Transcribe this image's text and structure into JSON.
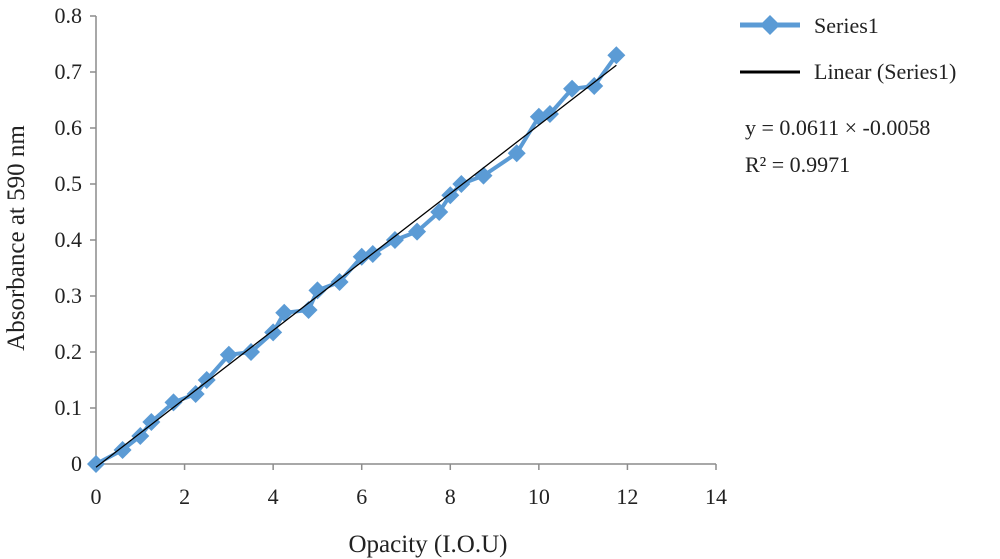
{
  "chart_data": {
    "type": "scatter",
    "title": "",
    "xlabel": "Opacity (I.O.U)",
    "ylabel": "Absorbance at 590 nm",
    "xlim": [
      0,
      14
    ],
    "ylim": [
      0,
      0.8
    ],
    "xticks": [
      "0",
      "2",
      "4",
      "6",
      "8",
      "10",
      "12",
      "14"
    ],
    "yticks": [
      "0",
      "0.1",
      "0.2",
      "0.3",
      "0.4",
      "0.5",
      "0.6",
      "0.7",
      "0.8"
    ],
    "grid": false,
    "legend_position": "right",
    "series": [
      {
        "name": "Series1",
        "color": "#5b9bd5",
        "marker": "diamond",
        "line": true,
        "x": [
          0,
          0.6,
          1.0,
          1.25,
          1.75,
          2.25,
          2.5,
          3.0,
          3.5,
          4.0,
          4.25,
          4.8,
          5.0,
          5.5,
          6.0,
          6.25,
          6.75,
          7.25,
          7.75,
          8.0,
          8.25,
          8.75,
          9.5,
          10.0,
          10.25,
          10.75,
          11.25,
          11.75
        ],
        "y": [
          0,
          0.025,
          0.05,
          0.075,
          0.11,
          0.125,
          0.15,
          0.195,
          0.2,
          0.235,
          0.27,
          0.275,
          0.31,
          0.325,
          0.37,
          0.375,
          0.4,
          0.415,
          0.45,
          0.48,
          0.5,
          0.515,
          0.555,
          0.62,
          0.625,
          0.67,
          0.675,
          0.73
        ]
      }
    ],
    "trendline": {
      "name": "Linear (Series1)",
      "color": "#000000",
      "x_range": [
        0,
        11.75
      ],
      "slope": 0.0611,
      "intercept": -0.0058
    },
    "annotations": {
      "equation": "y = 0.0611 × -0.0058",
      "r_squared": "R² = 0.9971"
    }
  }
}
